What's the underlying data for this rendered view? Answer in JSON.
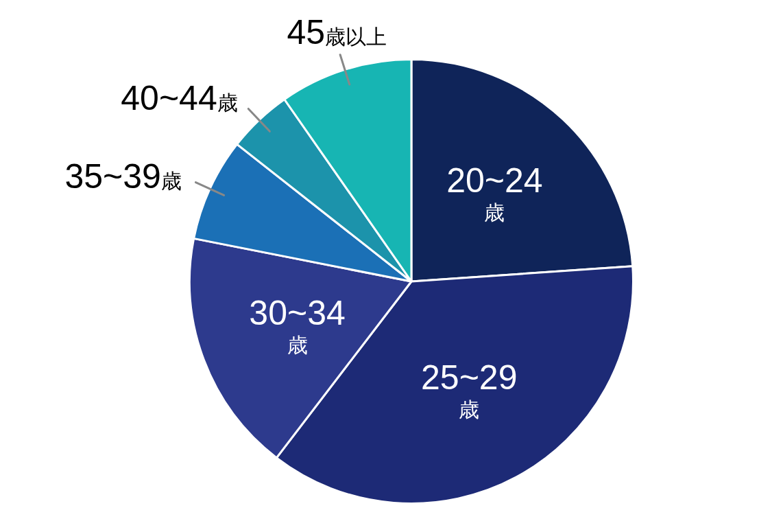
{
  "chart_data": {
    "type": "pie",
    "categories": [
      "20~24歳",
      "25~29歳",
      "30~34歳",
      "35~39歳",
      "40~44歳",
      "45歳以上"
    ],
    "values": [
      23.9,
      36.5,
      17.7,
      7.5,
      4.7,
      9.7
    ],
    "colors": [
      "#0f2459",
      "#1d2a76",
      "#2d3a8d",
      "#1b70b6",
      "#1c93ab",
      "#17b5b3"
    ],
    "legend": false
  }
}
